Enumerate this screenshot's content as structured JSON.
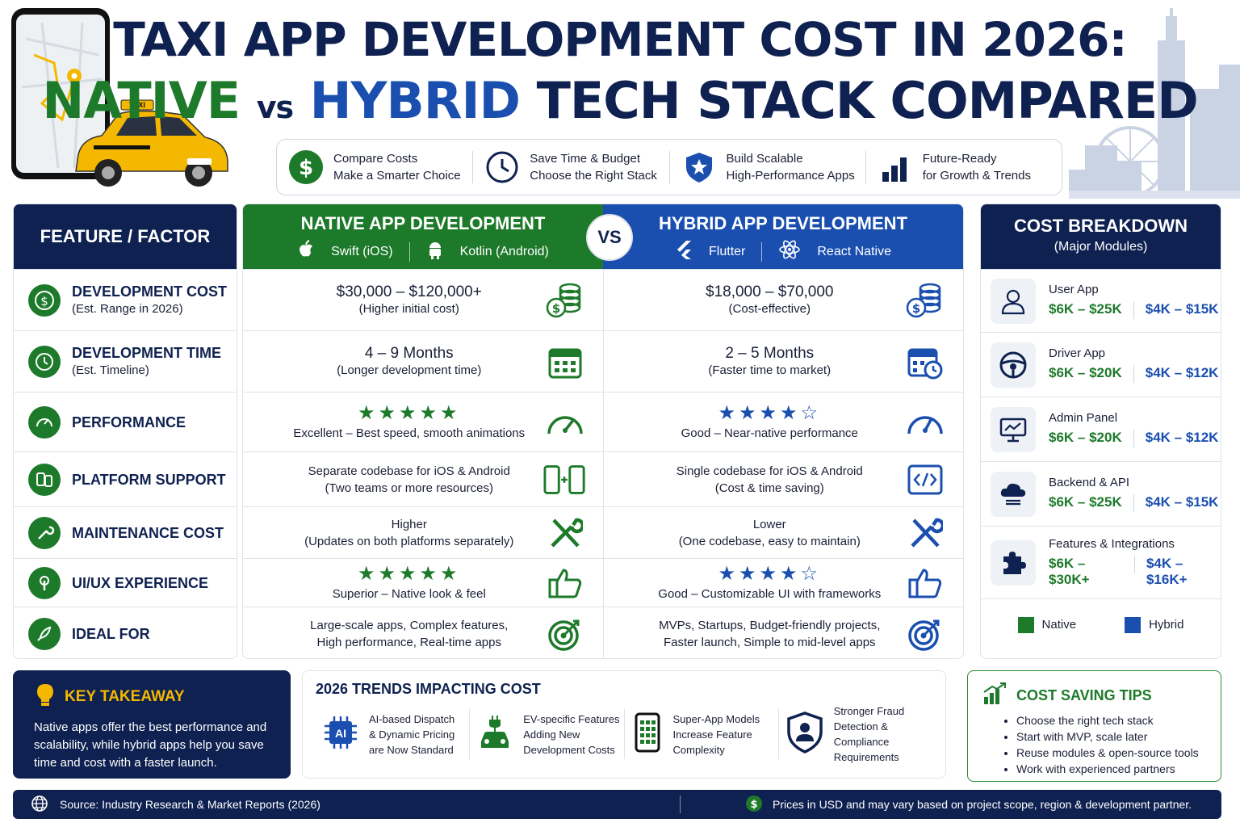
{
  "title": {
    "line1": "TAXI APP DEVELOPMENT COST IN 2026:",
    "native": "NATIVE",
    "vs": "vs",
    "hybrid": "HYBRID",
    "rest": "TECH STACK COMPARED"
  },
  "hero": {
    "taxi_sign": "TAXI"
  },
  "benefits": [
    {
      "icon": "dollar-icon",
      "l1": "Compare Costs",
      "l2": "Make a Smarter Choice"
    },
    {
      "icon": "clock-icon",
      "l1": "Save Time & Budget",
      "l2": "Choose the Right Stack"
    },
    {
      "icon": "shield-icon",
      "l1": "Build Scalable",
      "l2": "High-Performance Apps"
    },
    {
      "icon": "growth-chart-icon",
      "l1": "Future-Ready",
      "l2": "for Growth & Trends"
    }
  ],
  "features": {
    "header": "FEATURE / FACTOR",
    "rows": [
      {
        "label": "DEVELOPMENT COST",
        "sub": "(Est. Range in 2026)",
        "icon": "dollar-icon"
      },
      {
        "label": "DEVELOPMENT TIME",
        "sub": "(Est. Timeline)",
        "icon": "clock-icon"
      },
      {
        "label": "PERFORMANCE",
        "sub": "",
        "icon": "gauge-icon"
      },
      {
        "label": "PLATFORM SUPPORT",
        "sub": "",
        "icon": "devices-icon"
      },
      {
        "label": "MAINTENANCE COST",
        "sub": "",
        "icon": "wrench-icon"
      },
      {
        "label": "UI/UX EXPERIENCE",
        "sub": "",
        "icon": "touch-icon"
      },
      {
        "label": "IDEAL FOR",
        "sub": "",
        "icon": "rocket-icon"
      }
    ]
  },
  "native": {
    "header": "NATIVE APP DEVELOPMENT",
    "stack1": "Swift (iOS)",
    "stack2": "Kotlin (Android)",
    "cost": "$30,000 – $120,000+",
    "cost_note": "(Higher initial cost)",
    "time": "4 – 9 Months",
    "time_note": "(Longer development time)",
    "performance_rating": 5,
    "performance_stars": "★★★★★",
    "performance_note": "Excellent – Best speed, smooth animations",
    "platform_l1": "Separate codebase for iOS & Android",
    "platform_l2": "(Two teams or more resources)",
    "maint_l1": "Higher",
    "maint_l2": "(Updates on both platforms separately)",
    "ux_rating": 5,
    "ux_stars": "★★★★★",
    "ux_note": "Superior – Native look & feel",
    "ideal_l1": "Large-scale apps, Complex features,",
    "ideal_l2": "High performance, Real-time apps"
  },
  "vs_badge": "VS",
  "hybrid": {
    "header": "HYBRID APP DEVELOPMENT",
    "stack1": "Flutter",
    "stack2": "React Native",
    "cost": "$18,000 – $70,000",
    "cost_note": "(Cost-effective)",
    "time": "2 – 5 Months",
    "time_note": "(Faster time to market)",
    "performance_rating": 4,
    "performance_stars": "★★★★☆",
    "performance_note": "Good – Near-native performance",
    "platform_l1": "Single codebase for iOS & Android",
    "platform_l2": "(Cost & time saving)",
    "maint_l1": "Lower",
    "maint_l2": "(One codebase, easy to maintain)",
    "ux_rating": 4,
    "ux_stars": "★★★★☆",
    "ux_note": "Good – Customizable UI with frameworks",
    "ideal_l1": "MVPs, Startups, Budget-friendly projects,",
    "ideal_l2": "Faster launch, Simple to mid-level apps"
  },
  "cost_breakdown": {
    "title": "COST BREAKDOWN",
    "subtitle": "(Major Modules)",
    "modules": [
      {
        "name": "User App",
        "native": "$6K – $25K",
        "hybrid": "$4K – $15K",
        "icon": "user-icon"
      },
      {
        "name": "Driver App",
        "native": "$6K – $20K",
        "hybrid": "$4K – $12K",
        "icon": "steering-wheel-icon"
      },
      {
        "name": "Admin Panel",
        "native": "$6K – $20K",
        "hybrid": "$4K – $12K",
        "icon": "monitor-chart-icon"
      },
      {
        "name": "Backend & API",
        "native": "$6K – $25K",
        "hybrid": "$4K – $15K",
        "icon": "cloud-server-icon"
      },
      {
        "name": "Features & Integrations",
        "native": "$6K – $30K+",
        "hybrid": "$4K – $16K+",
        "icon": "puzzle-icon"
      }
    ],
    "legend_native": "Native",
    "legend_hybrid": "Hybrid"
  },
  "takeaway": {
    "title": "KEY TAKEAWAY",
    "body": "Native apps offer the best performance and scalability, while hybrid apps help you save time and cost with a faster launch."
  },
  "trends": {
    "title": "2026 TRENDS IMPACTING COST",
    "items": [
      {
        "l1": "AI-based Dispatch",
        "l2": "& Dynamic Pricing",
        "l3": "are Now Standard",
        "icon": "ai-chip-icon"
      },
      {
        "l1": "EV-specific Features",
        "l2": "Adding New",
        "l3": "Development Costs",
        "icon": "ev-car-icon"
      },
      {
        "l1": "Super-App Models",
        "l2": "Increase Feature",
        "l3": "Complexity",
        "icon": "phone-grid-icon"
      },
      {
        "l1": "Stronger Fraud",
        "l2": "Detection & Compliance",
        "l3": "Requirements",
        "icon": "shield-user-icon"
      }
    ]
  },
  "tips": {
    "title": "COST SAVING TIPS",
    "items": [
      "Choose the right tech stack",
      "Start with MVP, scale later",
      "Reuse modules & open-source tools",
      "Work with experienced partners"
    ]
  },
  "footer": {
    "source": "Source: Industry Research & Market Reports (2026)",
    "note": "Prices in USD and may vary based on project scope, region & development partner."
  },
  "colors": {
    "navy": "#0f2150",
    "native_green": "#1d7a2a",
    "hybrid_blue": "#1a4fb0",
    "taxi_yellow": "#f5b800"
  }
}
